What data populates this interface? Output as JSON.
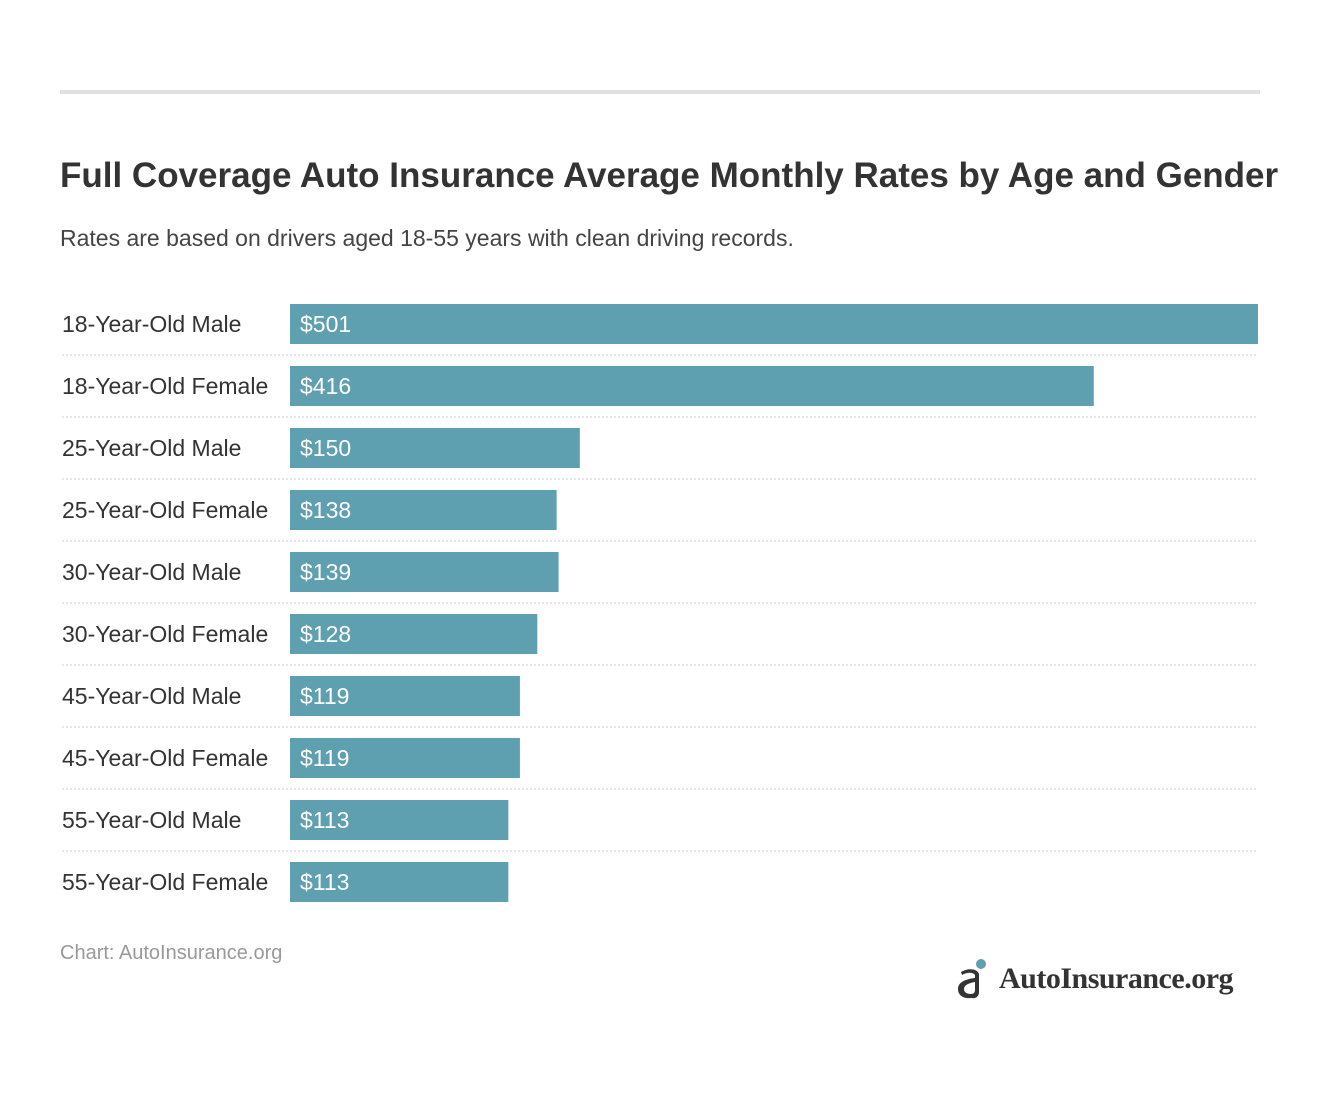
{
  "title": "Full Coverage Auto Insurance Average Monthly Rates by Age and Gender",
  "subtitle": "Rates are based on drivers aged 18-55 years with clean driving records.",
  "source": "Chart: AutoInsurance.org",
  "logo": {
    "text": "AutoInsurance.org",
    "icon": "autoinsurance-logo-icon"
  },
  "colors": {
    "bar": "#5e9fb0",
    "bar_text": "#ffffff",
    "divider": "#cccccc",
    "rule": "#e0e0e0",
    "text": "#333333",
    "source": "#999999",
    "logo_accent": "#5e9fb0"
  },
  "chart_data": {
    "type": "bar",
    "orientation": "horizontal",
    "categories": [
      "18-Year-Old Male",
      "18-Year-Old Female",
      "25-Year-Old Male",
      "25-Year-Old Female",
      "30-Year-Old Male",
      "30-Year-Old Female",
      "45-Year-Old Male",
      "45-Year-Old Female",
      "55-Year-Old Male",
      "55-Year-Old Female"
    ],
    "values": [
      501,
      416,
      150,
      138,
      139,
      128,
      119,
      119,
      113,
      113
    ],
    "value_labels": [
      "$501",
      "$416",
      "$150",
      "$138",
      "$139",
      "$128",
      "$119",
      "$119",
      "$113",
      "$113"
    ],
    "xlim": [
      0,
      501
    ],
    "grid": false,
    "legend": "none"
  }
}
